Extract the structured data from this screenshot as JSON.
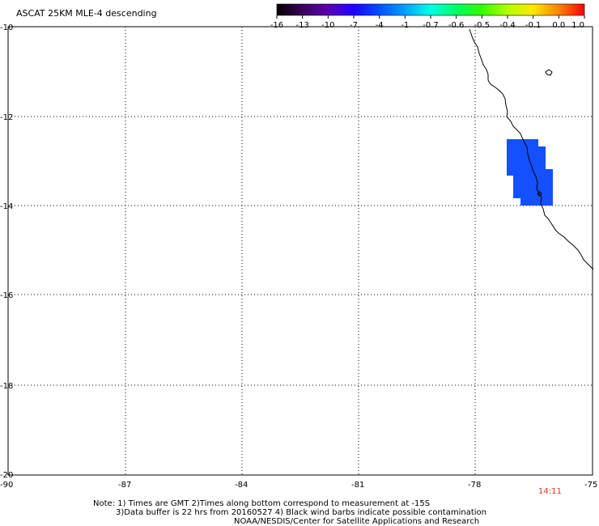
{
  "title": "ASCAT 25KM MLE-4 descending",
  "colorbar": {
    "labels": [
      "-16",
      "-13",
      "-10",
      "-7",
      "-4",
      "-1",
      "-0.7",
      "-0.6",
      "-0.5",
      "-0.4",
      "-0.1",
      "0.0",
      "1.0"
    ],
    "colors": [
      "#000000",
      "#3c005a",
      "#5a00b4",
      "#1e00ff",
      "#0050ff",
      "#00a0ff",
      "#00ffe6",
      "#00ff64",
      "#32ff00",
      "#b4ff00",
      "#ffe600",
      "#ff8200",
      "#ff0000"
    ]
  },
  "axes": {
    "y_ticks": [
      "-10",
      "-12",
      "-14",
      "-16",
      "-18",
      "-20"
    ],
    "x_ticks": [
      "-90",
      "-87",
      "-84",
      "-81",
      "-78",
      "-75"
    ]
  },
  "time_label": "14:11",
  "data_color": "#1450ff",
  "notes": {
    "line1": "Note: 1) Times are GMT 2)Times along bottom correspond to measurement at -15S",
    "line2": "3)Data buffer is 22 hrs from 20160527 4) Black wind barbs indicate possible contamination",
    "line3": "NOAA/NESDIS/Center for Satellite Applications and Research"
  }
}
